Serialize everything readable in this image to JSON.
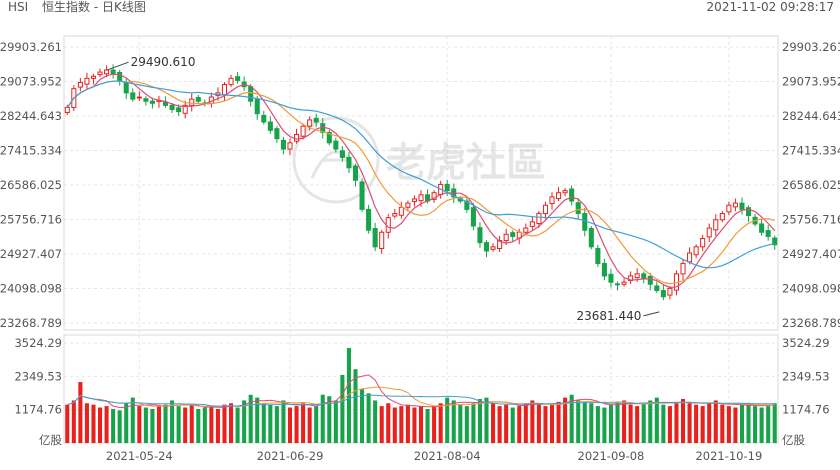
{
  "header": {
    "symbol": "HSI",
    "title": "恒生指数 - 日K线图",
    "timestamp": "2021-11-02 09:28:17"
  },
  "watermark": {
    "text": "老虎社區",
    "icon": "tiger-logo"
  },
  "colors": {
    "up": "#e8211d",
    "down": "#16a34a",
    "ma5": "#e04a74",
    "ma10": "#f29a38",
    "ma20": "#3f9fd9",
    "grid": "#e6e6e6"
  },
  "chart_data": [
    {
      "type": "candlestick",
      "title": "恒生指数 - 日K线图",
      "y_ticks": [
        "29903.261",
        "29073.952",
        "28244.643",
        "27415.334",
        "26586.025",
        "25756.716",
        "24927.407",
        "24098.098",
        "23268.789"
      ],
      "ylim": [
        23268.789,
        29903.261
      ],
      "x_ticks": [
        "2021-05-24",
        "2021-06-29",
        "2021-08-04",
        "2021-09-08",
        "2021-10-19"
      ],
      "annotations": [
        {
          "label": "29490.610",
          "kind": "high",
          "value": 29490.61
        },
        {
          "label": "23681.440",
          "kind": "low",
          "value": 23681.44
        }
      ],
      "series_lines": [
        "MA5",
        "MA10",
        "MA20"
      ],
      "closes": [
        28450,
        28900,
        29050,
        29150,
        29200,
        29300,
        29350,
        29250,
        29100,
        28800,
        28650,
        28700,
        28600,
        28550,
        28620,
        28500,
        28400,
        28350,
        28500,
        28650,
        28600,
        28550,
        28700,
        28800,
        29000,
        29150,
        29100,
        28950,
        28600,
        28300,
        28100,
        27900,
        27700,
        27450,
        27600,
        27800,
        28000,
        28150,
        28100,
        27850,
        27600,
        27450,
        27250,
        27000,
        26700,
        26000,
        25500,
        25100,
        25450,
        25800,
        25900,
        26050,
        26150,
        26250,
        26350,
        26200,
        26400,
        26600,
        26450,
        26300,
        26200,
        26000,
        25600,
        25200,
        25000,
        25100,
        25250,
        25400,
        25350,
        25450,
        25550,
        25700,
        25900,
        26100,
        26300,
        26400,
        26450,
        26200,
        25900,
        25500,
        25100,
        24700,
        24400,
        24250,
        24200,
        24250,
        24400,
        24450,
        24350,
        24200,
        24050,
        23900,
        24100,
        24450,
        24700,
        24950,
        25100,
        25300,
        25550,
        25750,
        25900,
        26100,
        26150,
        26000,
        25850,
        25650,
        25450,
        25350,
        25150
      ],
      "volume_axis": {
        "ticks": [
          "3524.29",
          "2349.53",
          "1174.76"
        ],
        "unit_label": "亿股",
        "ylim": [
          0,
          3524.29
        ]
      },
      "volumes": [
        1350,
        1500,
        2150,
        1400,
        1350,
        1250,
        1300,
        1200,
        1150,
        1400,
        1600,
        1300,
        1250,
        1200,
        1300,
        1350,
        1500,
        1300,
        1250,
        1350,
        1200,
        1250,
        1300,
        1200,
        1350,
        1400,
        1250,
        1500,
        1700,
        1600,
        1400,
        1350,
        1300,
        1500,
        1250,
        1300,
        1400,
        1250,
        1300,
        1700,
        1650,
        1500,
        2400,
        3350,
        2600,
        1900,
        1750,
        1500,
        1300,
        1400,
        1250,
        1300,
        1350,
        1250,
        1300,
        1200,
        1300,
        1400,
        1600,
        1500,
        1350,
        1300,
        1400,
        1550,
        1600,
        1400,
        1300,
        1350,
        1250,
        1300,
        1400,
        1500,
        1350,
        1300,
        1350,
        1450,
        1600,
        1700,
        1500,
        1450,
        1400,
        1300,
        1250,
        1350,
        1450,
        1500,
        1350,
        1300,
        1400,
        1500,
        1600,
        1350,
        1300,
        1400,
        1550,
        1450,
        1350,
        1300,
        1400,
        1500,
        1350,
        1300,
        1250,
        1350,
        1400,
        1300,
        1250,
        1300,
        1400
      ]
    }
  ]
}
